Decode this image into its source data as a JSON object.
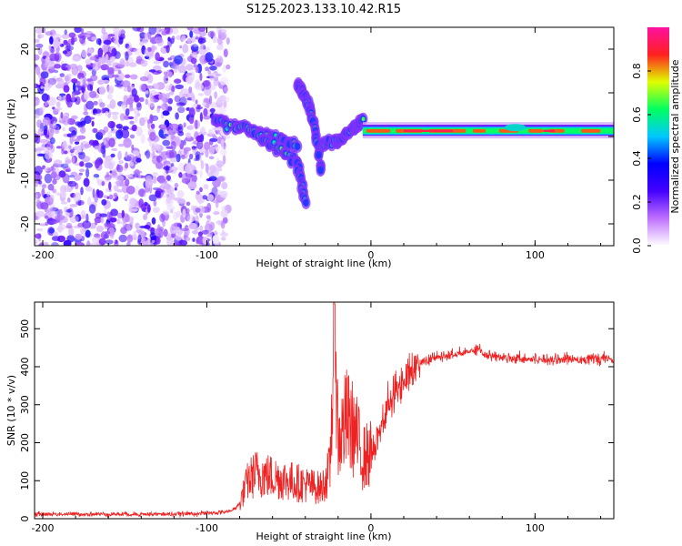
{
  "title": "S125.2023.133.10.42.R15",
  "chart_data": [
    {
      "type": "heatmap",
      "xlabel": "Height of straight line (km)",
      "ylabel": "Frequency (Hz)",
      "xlim": [
        -205,
        148
      ],
      "ylim": [
        -25,
        25
      ],
      "xticks": [
        -200,
        -100,
        0,
        100
      ],
      "yticks": [
        20,
        10,
        0,
        -10,
        -20
      ],
      "colorbar": {
        "label": "Normalized spectral amplitude",
        "range": [
          0,
          1
        ],
        "ticks": [
          "0.0",
          "0.2",
          "0.4",
          "0.6",
          "0.8"
        ],
        "colors": [
          "#ffffff",
          "#c070ff",
          "#4400ff",
          "#0000ff",
          "#00c8ff",
          "#00ff60",
          "#e0ff00",
          "#ff2020",
          "#ff10a0"
        ]
      },
      "features": {
        "noise_region": [
          -205,
          -95
        ],
        "branches": [
          {
            "x": [
              -95,
              -80,
              -60,
              -45
            ],
            "f": [
              4,
              2,
              0,
              -2
            ]
          },
          {
            "x": [
              -75,
              -60,
              -45,
              -40
            ],
            "f": [
              2,
              -2,
              -6,
              -15
            ]
          },
          {
            "x": [
              -45,
              -40,
              -35,
              -30
            ],
            "f": [
              12,
              9,
              3,
              -8
            ]
          },
          {
            "x": [
              -30,
              -20,
              -10,
              -5
            ],
            "f": [
              -2,
              -1,
              2,
              4
            ]
          }
        ],
        "carrier": {
          "x": [
            -5,
            148
          ],
          "f": 1
        }
      }
    },
    {
      "type": "line",
      "xlabel": "Height of straight line (km)",
      "ylabel": "SNR (10 * v/v)",
      "xlim": [
        -205,
        148
      ],
      "ylim": [
        0,
        570
      ],
      "xticks": [
        -200,
        -100,
        0,
        100
      ],
      "yticks": [
        0,
        100,
        200,
        300,
        400,
        500
      ],
      "series": [
        {
          "color": "#ee2222",
          "x": [
            -205,
            -180,
            -150,
            -120,
            -95,
            -85,
            -80,
            -75,
            -70,
            -60,
            -50,
            -40,
            -30,
            -25,
            -22,
            -20,
            -15,
            -10,
            -5,
            0,
            10,
            20,
            30,
            40,
            50,
            60,
            65,
            70,
            80,
            100,
            120,
            148
          ],
          "y": [
            12,
            12,
            12,
            12,
            15,
            20,
            40,
            100,
            120,
            110,
            100,
            90,
            80,
            130,
            560,
            200,
            260,
            230,
            160,
            170,
            290,
            370,
            410,
            425,
            430,
            440,
            450,
            430,
            425,
            420,
            420,
            420
          ]
        }
      ]
    }
  ]
}
